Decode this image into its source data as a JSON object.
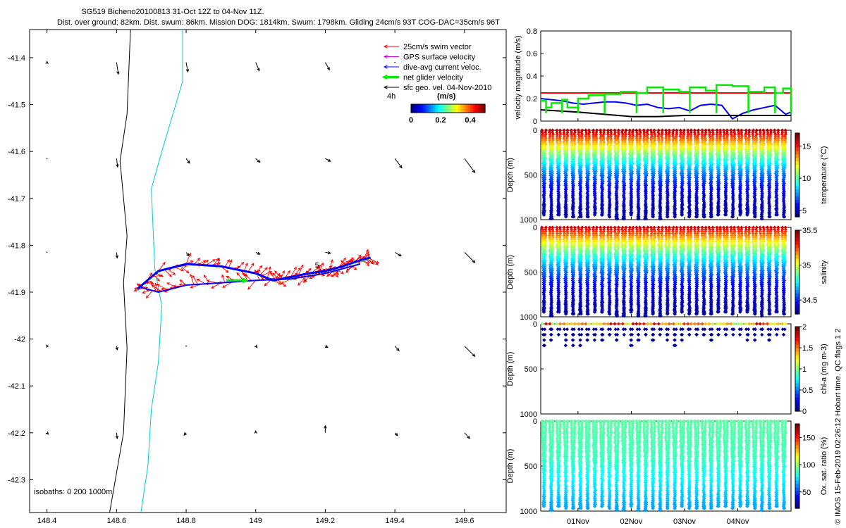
{
  "titles": {
    "line1": "SG519 Bicheno20100813 31-Oct 12Z to 04-Nov 11Z.",
    "line2": "Dist. over ground: 82km. Dist. swum: 86km. Mission DOG: 1814km. Swum: 1798km. Gliding 24cm/s 93T COG-DAC=35cm/s 96T"
  },
  "side_text": "© IMOS 15-Feb-2019 02:26:12 Hobart time. QC flags 1  2",
  "chart_data": [
    {
      "id": "map",
      "type": "scatter",
      "xlim": [
        148.35,
        149.72
      ],
      "ylim": [
        -42.37,
        -41.34
      ],
      "xticks": [
        "148.4",
        "148.6",
        "148.8",
        "149",
        "149.2",
        "149.4",
        "149.6"
      ],
      "xtick_values": [
        148.4,
        148.6,
        148.8,
        149.0,
        149.2,
        149.4,
        149.6
      ],
      "yticks": [
        "-41.4",
        "-41.5",
        "-41.6",
        "-41.7",
        "-41.8",
        "-41.9",
        "-42",
        "-42.1",
        "-42.2",
        "-42.3"
      ],
      "ytick_values": [
        -41.4,
        -41.5,
        -41.6,
        -41.7,
        -41.8,
        -41.9,
        -42.0,
        -42.1,
        -42.2,
        -42.3
      ],
      "legend": {
        "placement": "top-right",
        "entries": [
          {
            "label": "25cm/s swim vector",
            "color": "#ff0000"
          },
          {
            "label": "GPS surface velocity",
            "color": "#cc00cc"
          },
          {
            "label": "dive-avg current veloc.",
            "color": "#0000ff"
          },
          {
            "label": "net glider velocity",
            "color": "#00ee00"
          },
          {
            "label": "sfc geo. vel. 04-Nov-2010",
            "color": "#000000"
          }
        ],
        "time_step": "4h",
        "colorbar_unit": "(m/s)",
        "colorbar_ticks": [
          "0",
          "0.2",
          "0.4"
        ],
        "colorbar_tick_values": [
          0,
          0.2,
          0.4
        ],
        "colorbar_range": [
          0,
          0.5
        ]
      },
      "isobath_label": "isobaths: 0   200  1000m",
      "isobaths": [
        {
          "depth": 200,
          "color": "#000000",
          "points": [
            [
              148.64,
              -41.34
            ],
            [
              148.63,
              -41.52
            ],
            [
              148.61,
              -41.62
            ],
            [
              148.63,
              -41.78
            ],
            [
              148.62,
              -41.88
            ],
            [
              148.63,
              -42.02
            ],
            [
              148.62,
              -42.2
            ],
            [
              148.58,
              -42.37
            ]
          ]
        },
        {
          "depth": 1000,
          "color": "#00cccc",
          "points": [
            [
              148.79,
              -41.34
            ],
            [
              148.79,
              -41.45
            ],
            [
              148.73,
              -41.6
            ],
            [
              148.7,
              -41.68
            ],
            [
              148.71,
              -41.85
            ],
            [
              148.73,
              -41.93
            ],
            [
              148.72,
              -42.05
            ],
            [
              148.7,
              -42.15
            ],
            [
              148.69,
              -42.27
            ],
            [
              148.67,
              -42.37
            ]
          ]
        }
      ],
      "track": [
        [
          148.66,
          -41.893
        ],
        [
          148.72,
          -41.855
        ],
        [
          148.8,
          -41.84
        ],
        [
          148.9,
          -41.845
        ],
        [
          149.0,
          -41.86
        ],
        [
          149.05,
          -41.875
        ],
        [
          149.1,
          -41.868
        ],
        [
          149.15,
          -41.86
        ],
        [
          149.2,
          -41.855
        ],
        [
          149.25,
          -41.845
        ],
        [
          149.3,
          -41.832
        ],
        [
          149.33,
          -41.826
        ]
      ],
      "track_return": [
        [
          149.3,
          -41.84
        ],
        [
          149.2,
          -41.86
        ],
        [
          149.1,
          -41.872
        ],
        [
          149.0,
          -41.875
        ],
        [
          148.9,
          -41.88
        ],
        [
          148.8,
          -41.885
        ],
        [
          148.72,
          -41.9
        ],
        [
          148.67,
          -41.89
        ]
      ],
      "green_marker": [
        148.96,
        -41.875
      ],
      "track_label": "5",
      "geo_grid_lons": [
        148.4,
        148.6,
        148.8,
        149.0,
        149.2,
        149.4,
        149.6
      ],
      "geo_grid_lats": [
        -41.41,
        -41.615,
        -41.815,
        -42.015,
        -42.2
      ],
      "geo_vectors": [
        [
          0,
          0.002
        ],
        [
          0.005,
          -0.025
        ],
        [
          0.005,
          -0.02
        ],
        [
          0.01,
          -0.018
        ],
        [
          0.012,
          -0.016
        ],
        [
          0,
          0
        ],
        [
          0,
          0
        ],
        [
          0,
          0
        ],
        [
          0.003,
          -0.018
        ],
        [
          0.01,
          -0.01
        ],
        [
          0.012,
          -0.008
        ],
        [
          0.015,
          -0.006
        ],
        [
          0.02,
          -0.02
        ],
        [
          0.03,
          -0.03
        ],
        [
          0,
          0
        ],
        [
          0.002,
          -0.012
        ],
        [
          0.008,
          -0.008
        ],
        [
          0.012,
          -0.004
        ],
        [
          0.015,
          -0.002
        ],
        [
          0.018,
          -0.008
        ],
        [
          0.03,
          -0.022
        ],
        [
          0.004,
          0
        ],
        [
          0.002,
          -0.008
        ],
        [
          0,
          0
        ],
        [
          0.004,
          -0.003
        ],
        [
          0.007,
          -0.003
        ],
        [
          0.012,
          -0.01
        ],
        [
          0.03,
          -0.022
        ],
        [
          0.004,
          -0.003
        ],
        [
          0.002,
          -0.012
        ],
        [
          -0.006,
          -0.005
        ],
        [
          0,
          0.004
        ],
        [
          0,
          0.015
        ],
        [
          0.008,
          -0.006
        ],
        [
          0.015,
          -0.012
        ]
      ]
    },
    {
      "id": "velocity",
      "type": "line",
      "ylabel": "velocity magnitude (m/s)",
      "ylim": [
        0,
        0.8
      ],
      "yticks": [
        "0",
        "0.2",
        "0.4",
        "0.6",
        "0.8"
      ],
      "ytick_values": [
        0,
        0.2,
        0.4,
        0.6,
        0.8
      ],
      "x_range_days": [
        -0.7,
        4.0
      ],
      "series": [
        {
          "color": "#ff0000",
          "x": [
            -0.7,
            4.0
          ],
          "values": [
            0.25,
            0.25
          ]
        },
        {
          "color": "#0000ff",
          "x": [
            -0.7,
            -0.5,
            -0.3,
            -0.1,
            0.1,
            0.3,
            0.5,
            0.7,
            0.9,
            1.1,
            1.3,
            1.5,
            1.7,
            1.9,
            2.1,
            2.3,
            2.5,
            2.7,
            2.9,
            3.1,
            3.3,
            3.5,
            3.7,
            3.9,
            4.0
          ],
          "values": [
            0.2,
            0.19,
            0.18,
            0.16,
            0.15,
            0.16,
            0.17,
            0.17,
            0.16,
            0.14,
            0.15,
            0.12,
            0.11,
            0.12,
            0.09,
            0.14,
            0.15,
            0.14,
            0.02,
            0.07,
            0.1,
            0.12,
            0.14,
            0.06,
            0.08
          ]
        },
        {
          "color": "#000000",
          "x": [
            -0.7,
            0,
            0.5,
            1,
            1.5,
            2,
            2.5,
            3,
            3.5,
            4.0
          ],
          "values": [
            0.1,
            0.08,
            0.06,
            0.04,
            0.04,
            0.05,
            0.05,
            0.05,
            0.05,
            0.05
          ]
        },
        {
          "color": "#00ee00",
          "x": [
            -0.7,
            -0.6,
            -0.5,
            -0.3,
            -0.2,
            0,
            0.2,
            0.5,
            0.8,
            1.1,
            1.3,
            1.6,
            1.9,
            2.1,
            2.4,
            2.6,
            2.9,
            3.2,
            3.5,
            3.7,
            3.85,
            4.0
          ],
          "values": [
            0.18,
            0.12,
            0.16,
            0.19,
            0.12,
            0.2,
            0.23,
            0.24,
            0.26,
            0.25,
            0.3,
            0.28,
            0.26,
            0.3,
            0.27,
            0.32,
            0.31,
            0.26,
            0.3,
            0.25,
            0.29,
            0.28
          ]
        }
      ]
    },
    {
      "id": "temperature",
      "type": "heatmap",
      "ylabel": "Depth (m)",
      "colorbar_label": "temperature (°C)",
      "clim": [
        4,
        17
      ],
      "colorbar_ticks": [
        "5",
        "10",
        "15"
      ],
      "colorbar_tick_values": [
        5,
        10,
        15
      ],
      "depth_max": 1000,
      "yticks": [
        "0",
        "500",
        "1000"
      ],
      "ytick_values": [
        0,
        500,
        1000
      ],
      "profile_max_depth": 1000,
      "surface_value": 16.5,
      "deep_value": 4.5,
      "n_dives": 34
    },
    {
      "id": "salinity",
      "type": "heatmap",
      "ylabel": "Depth (m)",
      "colorbar_label": "salinity",
      "clim": [
        34.3,
        35.5
      ],
      "colorbar_ticks": [
        "34.5",
        "35",
        "35.5"
      ],
      "colorbar_tick_values": [
        34.5,
        35,
        35.5
      ],
      "depth_max": 1000,
      "yticks": [
        "0",
        "500",
        "1000"
      ],
      "ytick_values": [
        0,
        500,
        1000
      ],
      "profile_max_depth": 1000,
      "surface_value": 35.4,
      "deep_value": 34.35,
      "n_dives": 34
    },
    {
      "id": "chla",
      "type": "heatmap",
      "ylabel": "Depth (m)",
      "colorbar_label": "chl-a (mg m-3)",
      "clim": [
        0,
        2
      ],
      "colorbar_ticks": [
        "0",
        "0.5",
        "1",
        "1.5",
        "2"
      ],
      "colorbar_tick_values": [
        0,
        0.5,
        1,
        1.5,
        2
      ],
      "depth_max": 1000,
      "yticks": [
        "0",
        "500",
        "1000"
      ],
      "ytick_values": [
        0,
        500,
        1000
      ],
      "profile_max_depth": 260,
      "surface_value": 1.7,
      "deep_value": 0.05,
      "n_dives": 34
    },
    {
      "id": "oxygen",
      "type": "heatmap",
      "ylabel": "Depth (m)",
      "colorbar_label": "Ox. sat. ratio (%)",
      "clim": [
        20,
        175
      ],
      "colorbar_ticks": [
        "50",
        "100",
        "150"
      ],
      "colorbar_tick_values": [
        50,
        100,
        150
      ],
      "depth_max": 1000,
      "yticks": [
        "0",
        "500",
        "1000"
      ],
      "ytick_values": [
        0,
        500,
        1000
      ],
      "profile_max_depth": 1000,
      "surface_value": 92,
      "deep_value": 70,
      "n_dives": 34
    }
  ],
  "time_axis": {
    "ticks": [
      "01Nov",
      "02Nov",
      "03Nov",
      "04Nov"
    ],
    "tick_values": [
      0,
      1,
      2,
      3
    ],
    "range_days": [
      -0.7,
      4.0
    ]
  }
}
